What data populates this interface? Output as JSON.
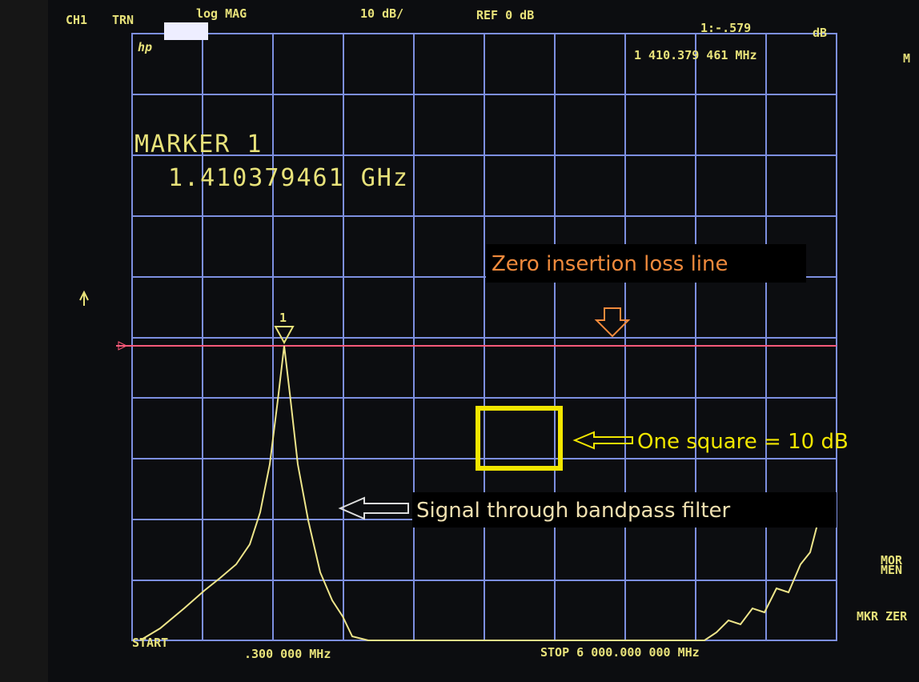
{
  "header": {
    "channel": "CH1",
    "mode": "TRN",
    "format": "log MAG",
    "scale": "10 dB/",
    "reference": "REF 0 dB",
    "marker_value": "1:-.579",
    "marker_unit": "dB",
    "logo": "hp",
    "marker_freq": "1 410.379 461 MHz",
    "edge": "M"
  },
  "marker": {
    "title": "MARKER 1",
    "frequency": "1.410379461 GHz",
    "symbol": "1"
  },
  "footer": {
    "start": "START",
    "start_freq": ".300 000 MHz",
    "stop": "STOP 6 000.000 000 MHz"
  },
  "softkeys": {
    "more": "MOR",
    "memory": "MEN",
    "zero": "MKR ZER"
  },
  "annotations": {
    "zero_line": "Zero insertion loss line",
    "square": "One square = 10 dB",
    "signal": "Signal through bandpass filter"
  }
}
